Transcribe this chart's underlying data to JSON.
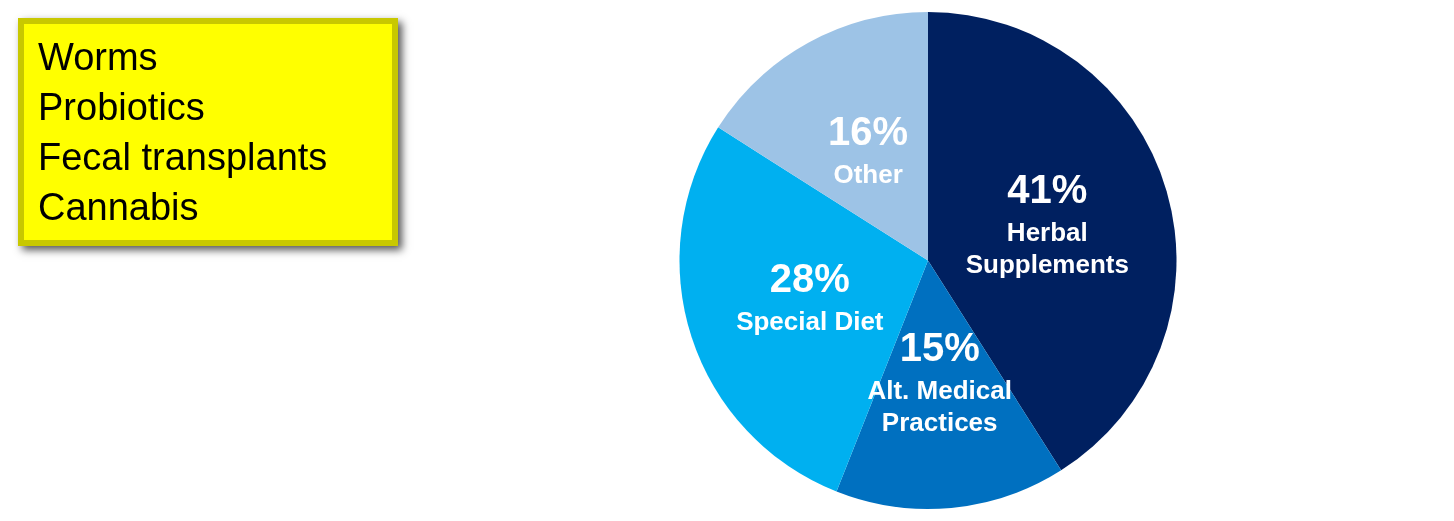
{
  "chart_data": {
    "type": "pie",
    "categories": [
      "Herbal Supplements",
      "Alt. Medical Practices",
      "Special Diet",
      "Other"
    ],
    "values": [
      41,
      15,
      28,
      16
    ],
    "value_labels": [
      "41%",
      "15%",
      "28%",
      "16%"
    ],
    "colors": [
      "#002060",
      "#0070c0",
      "#00b0f0",
      "#9dc3e6"
    ],
    "legend": false,
    "annotations": [
      "Worms",
      "Probiotics",
      "Fecal transplants",
      "Cannabis"
    ]
  }
}
